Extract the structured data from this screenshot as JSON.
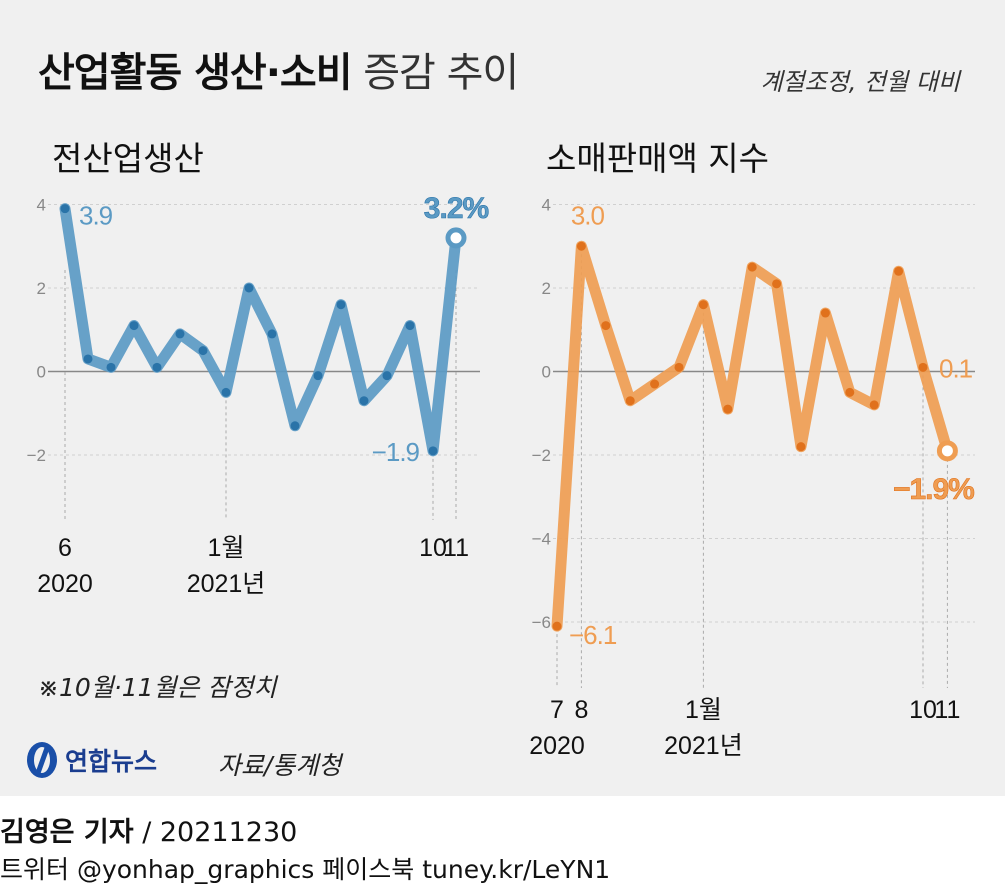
{
  "header": {
    "title_bold": "산업활동 생산·소비",
    "title_light": "증감 추이",
    "basis": "계절조정, 전월 대비"
  },
  "footer": {
    "note": "※10월·11월은 잠정치",
    "logo": "연합뉴스",
    "source": "자료/통계청",
    "reporter": "김영은 기자",
    "date": "/ 20211230",
    "social": "트위터 @yonhap_graphics  페이스북 tuney.kr/LeYN1"
  },
  "colors": {
    "production": "#5b9ac4",
    "production_dot": "#2a73a8",
    "retail": "#ef9d52",
    "retail_dot": "#e0711c",
    "zero_line": "#888888",
    "grid": "#d0d0d0",
    "tick_text": "#888888"
  },
  "chart_data": [
    {
      "type": "line",
      "title": "전산업생산",
      "x": [
        "2020-06",
        "2020-07",
        "2020-08",
        "2020-09",
        "2020-10",
        "2020-11",
        "2020-12",
        "2021-01",
        "2021-02",
        "2021-03",
        "2021-04",
        "2021-05",
        "2021-06",
        "2021-07",
        "2021-08",
        "2021-09",
        "2021-10",
        "2021-11"
      ],
      "values": [
        3.9,
        0.3,
        0.1,
        1.1,
        0.1,
        0.9,
        0.5,
        -0.5,
        2.0,
        0.9,
        -1.3,
        -0.1,
        1.6,
        -0.7,
        -0.1,
        1.1,
        -1.9,
        3.2
      ],
      "yticks": [
        "4",
        "2",
        "0",
        "−2"
      ],
      "ylim": [
        -2.5,
        4.2
      ],
      "grid": true,
      "data_labels": [
        {
          "index": 0,
          "text": "3.9"
        },
        {
          "index": 16,
          "text": "−1.9"
        },
        {
          "index": 17,
          "text": "3.2%"
        }
      ],
      "x_ticks": [
        {
          "index": 0,
          "line1": "6",
          "line2": "2020"
        },
        {
          "index": 7,
          "line1": "1월",
          "line2": "2021년"
        },
        {
          "index": 16,
          "line1": "10",
          "line2": ""
        },
        {
          "index": 17,
          "line1": "11",
          "line2": ""
        }
      ]
    },
    {
      "type": "line",
      "title": "소매판매액 지수",
      "x": [
        "2020-07",
        "2020-08",
        "2020-09",
        "2020-10",
        "2020-11",
        "2020-12",
        "2021-01",
        "2021-02",
        "2021-03",
        "2021-04",
        "2021-05",
        "2021-06",
        "2021-07",
        "2021-08",
        "2021-09",
        "2021-10",
        "2021-11"
      ],
      "values": [
        -6.1,
        3.0,
        1.1,
        -0.7,
        -0.3,
        0.1,
        1.6,
        -0.9,
        2.5,
        2.1,
        -1.8,
        1.4,
        -0.5,
        -0.8,
        2.4,
        0.1,
        -1.9
      ],
      "yticks": [
        "4",
        "2",
        "0",
        "−2",
        "−4",
        "−6"
      ],
      "ylim": [
        -6.5,
        4.2
      ],
      "grid": true,
      "data_labels": [
        {
          "index": 0,
          "text": "−6.1"
        },
        {
          "index": 1,
          "text": "3.0"
        },
        {
          "index": 15,
          "text": "0.1"
        },
        {
          "index": 16,
          "text": "−1.9%"
        }
      ],
      "x_ticks": [
        {
          "index": 0,
          "line1": "7",
          "line2": "2020"
        },
        {
          "index": 1,
          "line1": "8",
          "line2": ""
        },
        {
          "index": 6,
          "line1": "1월",
          "line2": "2021년"
        },
        {
          "index": 15,
          "line1": "10",
          "line2": ""
        },
        {
          "index": 16,
          "line1": "11",
          "line2": ""
        }
      ]
    }
  ]
}
